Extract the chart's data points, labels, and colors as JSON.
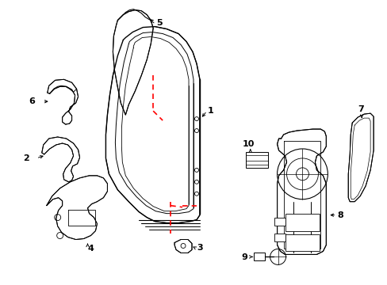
{
  "background_color": "#ffffff",
  "line_color": "#000000",
  "red_color": "#ff0000",
  "fig_width": 4.89,
  "fig_height": 3.6,
  "dpi": 100
}
